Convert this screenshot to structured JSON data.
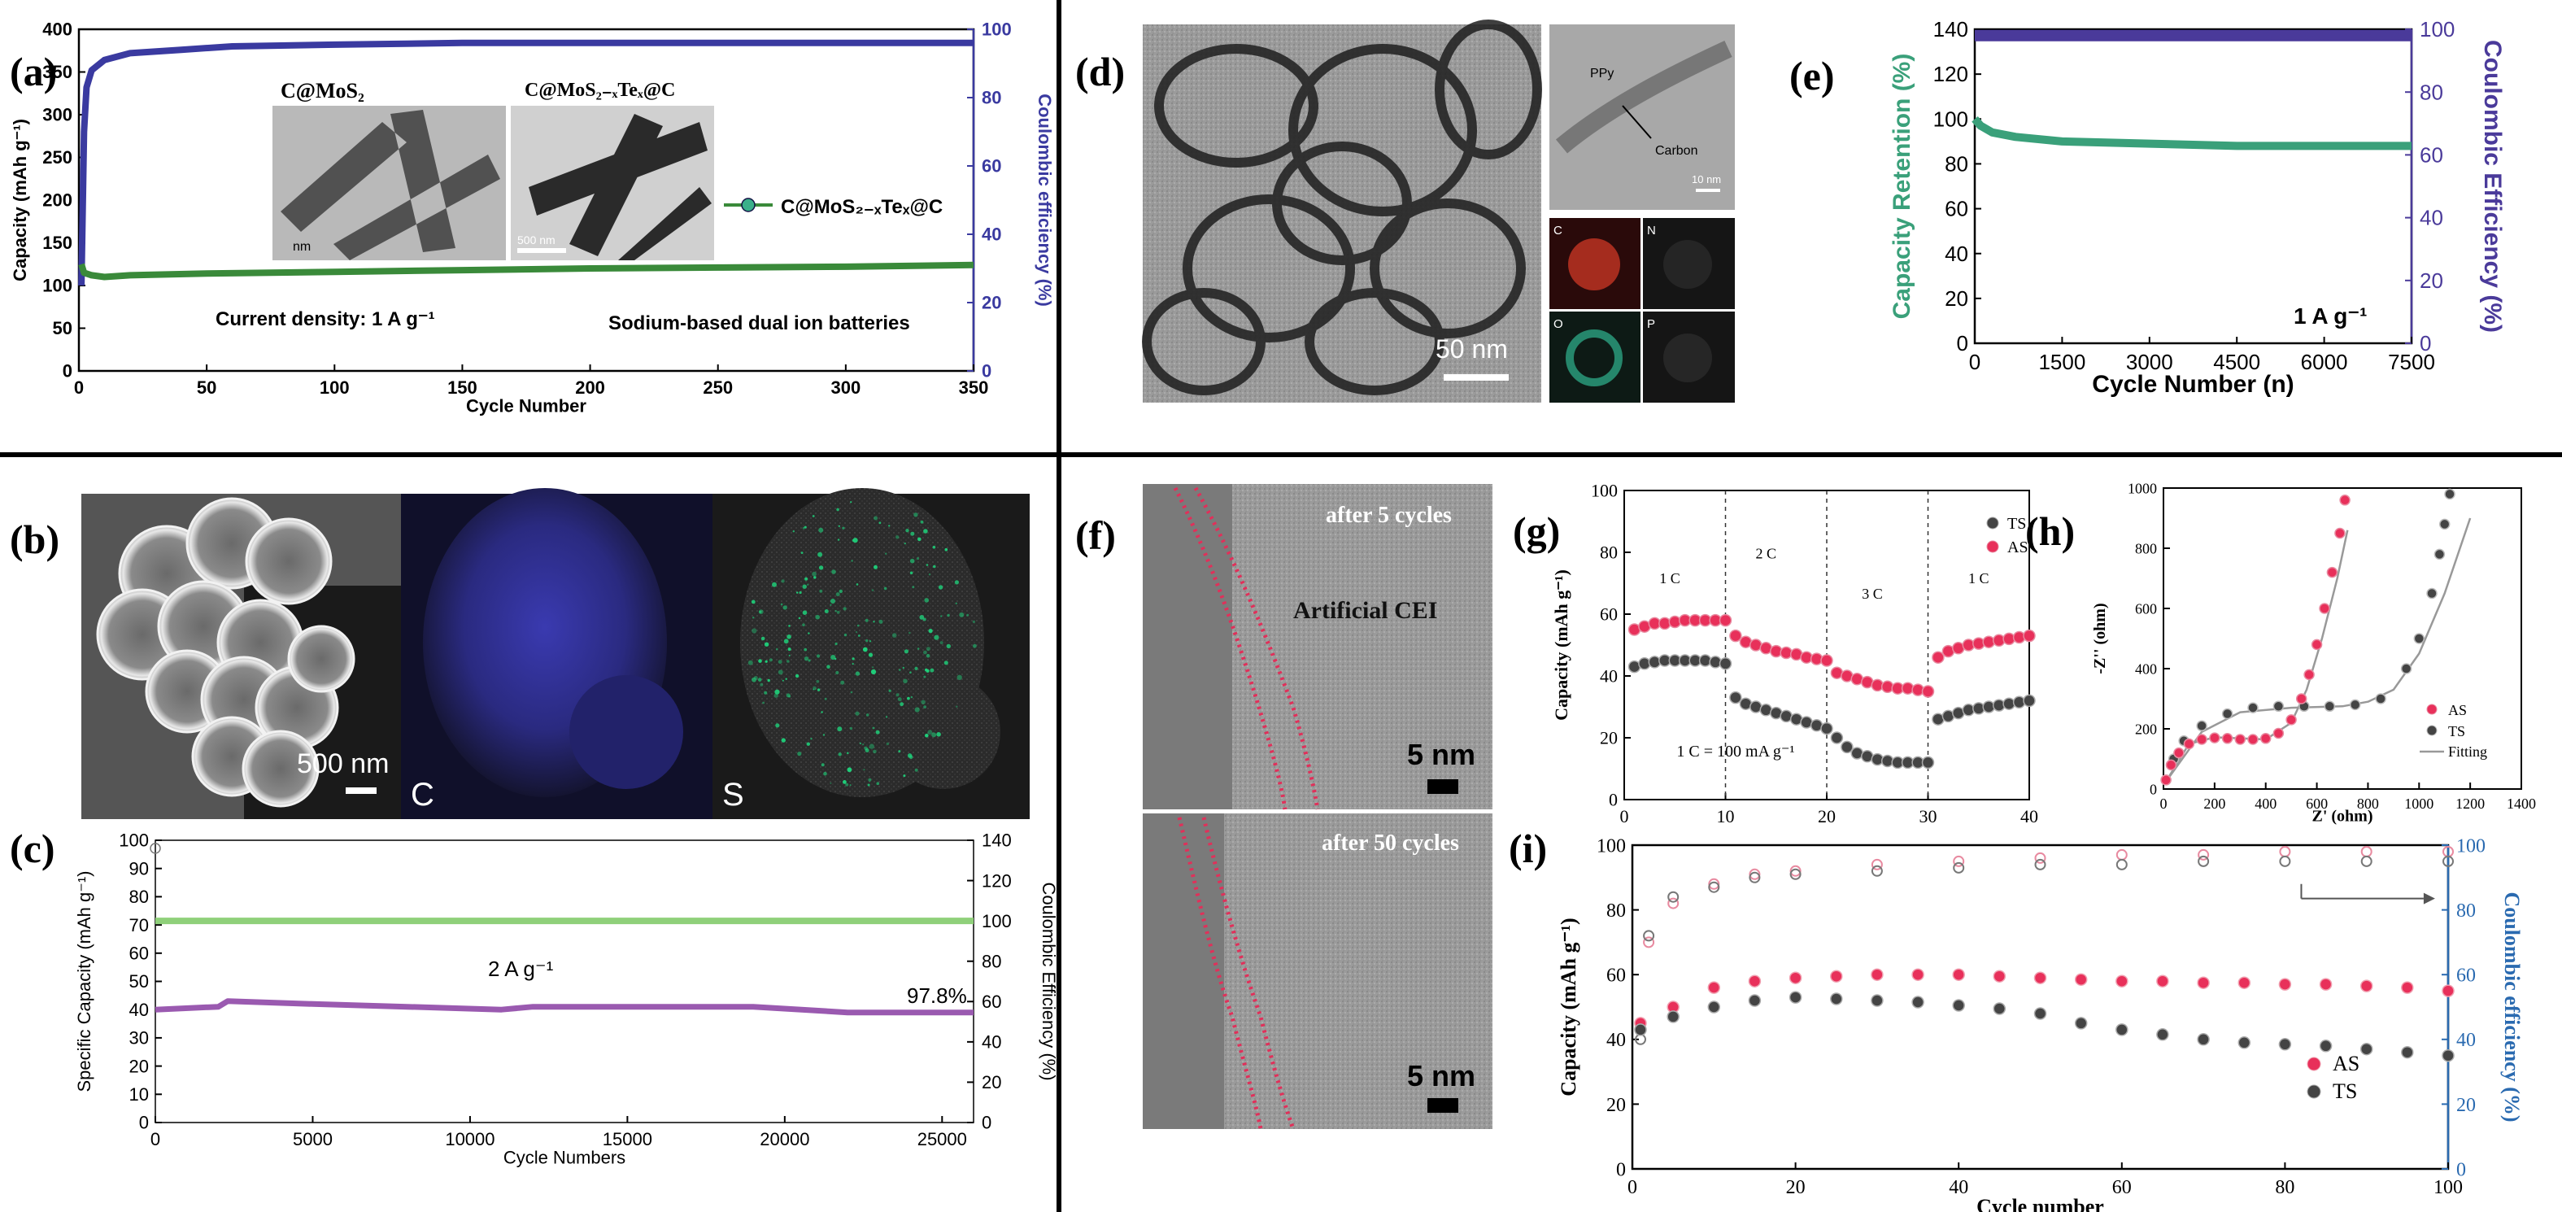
{
  "panels": {
    "a": {
      "letter": "(a)",
      "inset1_label": "C@MoS₂",
      "inset2_label": "C@MoS₂₋ₓTeₓ@C",
      "inset1_scale": "nm",
      "inset2_scale": "500 nm",
      "note1": "Current density: 1 A g⁻¹",
      "note2": "Sodium-based dual ion batteries"
    },
    "b": {
      "letter": "(b)",
      "scale": "500 nm",
      "map_c": "C",
      "map_s": "S"
    },
    "c": {
      "letter": "(c)",
      "rate": "2 A g⁻¹",
      "efficiency": "97.8%"
    },
    "d": {
      "letter": "(d)",
      "scale": "50 nm",
      "ppy_label": "PPy",
      "carbon_label": "Carbon",
      "small_scale": "10 nm",
      "map_labels": [
        "C",
        "N",
        "O",
        "P"
      ]
    },
    "e": {
      "letter": "(e)",
      "rate": "1 A g⁻¹"
    },
    "f": {
      "letter": "(f)",
      "top_label": "after 5 cycles",
      "cei_label": "Artificial CEI",
      "bottom_label": "after 50 cycles",
      "scale_top": "5 nm",
      "scale_bottom": "5 nm"
    },
    "g": {
      "letter": "(g)",
      "rate_labels": [
        "1 C",
        "2 C",
        "3 C",
        "1 C"
      ],
      "note": "1 C = 100 mA g⁻¹"
    },
    "h": {
      "letter": "(h)"
    },
    "i": {
      "letter": "(i)"
    }
  },
  "colors": {
    "blue": "#3a3aa0",
    "green": "#3a8a3a",
    "teal": "#3aa07a",
    "purple": "#4a3a9a",
    "red": "#e8305a",
    "black": "#333333",
    "light_green": "#8fd07a",
    "violet": "#9a5ab0",
    "mauve": "#d07a9a"
  },
  "chart_data": [
    {
      "id": "a",
      "type": "line",
      "xlabel": "Cycle Number",
      "ylabel": "Capacity (mAh g⁻¹)",
      "y2label": "Coulombic efficiency (%)",
      "xlim": [
        0,
        350
      ],
      "ylim": [
        0,
        400
      ],
      "y2lim": [
        0,
        100
      ],
      "xticks": [
        0,
        50,
        100,
        150,
        200,
        250,
        300,
        350
      ],
      "yticks": [
        0,
        50,
        100,
        150,
        200,
        250,
        300,
        350,
        400
      ],
      "y2ticks": [
        0,
        20,
        40,
        60,
        80,
        100
      ],
      "series": [
        {
          "name": "C@MoS₂₋ₓTeₓ@C",
          "axis": "y",
          "x": [
            1,
            2,
            5,
            10,
            20,
            50,
            100,
            150,
            200,
            250,
            300,
            350
          ],
          "values": [
            125,
            115,
            112,
            110,
            112,
            114,
            116,
            118,
            120,
            121,
            122,
            124
          ]
        },
        {
          "name": "",
          "axis": "y2",
          "x": [
            1,
            2,
            3,
            5,
            10,
            20,
            40,
            60,
            100,
            150,
            200,
            250,
            300,
            350
          ],
          "values": [
            25,
            70,
            83,
            88,
            91,
            93,
            94,
            95,
            95.5,
            96,
            96,
            96,
            96,
            96
          ]
        }
      ],
      "legend": [
        "C@MoS₂₋ₓTeₓ@C"
      ]
    },
    {
      "id": "c",
      "type": "line",
      "xlabel": "Cycle Numbers",
      "ylabel": "Specific Capacity (mAh g⁻¹)",
      "y2label": "Coulombic Efficiency (%)",
      "xlim": [
        0,
        26000
      ],
      "ylim": [
        0,
        100
      ],
      "y2lim": [
        0,
        140
      ],
      "xticks": [
        0,
        5000,
        10000,
        15000,
        20000,
        25000
      ],
      "yticks": [
        0,
        10,
        20,
        30,
        40,
        50,
        60,
        70,
        80,
        90,
        100
      ],
      "y2ticks": [
        0,
        20,
        40,
        60,
        80,
        100,
        120,
        140
      ],
      "series": [
        {
          "name": "",
          "axis": "y",
          "x": [
            0,
            2000,
            2300,
            5000,
            8000,
            11000,
            12000,
            15000,
            19000,
            22000,
            26000
          ],
          "values": [
            40,
            41,
            43,
            42,
            41,
            40,
            41,
            41,
            41,
            39,
            39
          ]
        },
        {
          "name": "",
          "axis": "y2",
          "x": [
            0,
            5000,
            10000,
            15000,
            20000,
            26000
          ],
          "values": [
            100,
            100,
            100,
            100,
            100,
            100
          ]
        }
      ]
    },
    {
      "id": "e",
      "type": "line",
      "xlabel": "Cycle Number (n)",
      "ylabel": "Capacity Retention (%)",
      "y2label": "Coulombic Efficiency (%)",
      "xlim": [
        0,
        7500
      ],
      "ylim": [
        0,
        140
      ],
      "y2lim": [
        0,
        100
      ],
      "xticks": [
        0,
        1500,
        3000,
        4500,
        6000,
        7500
      ],
      "yticks": [
        0,
        20,
        40,
        60,
        80,
        100,
        120,
        140
      ],
      "y2ticks": [
        0,
        20,
        40,
        60,
        80,
        100
      ],
      "series": [
        {
          "name": "",
          "axis": "y",
          "x": [
            0,
            100,
            300,
            700,
            1500,
            3000,
            4500,
            6000,
            7500
          ],
          "values": [
            100,
            97,
            94,
            92,
            90,
            89,
            88,
            88,
            88
          ]
        },
        {
          "name": "",
          "axis": "y2",
          "x": [
            0,
            1500,
            3000,
            4500,
            6000,
            7500
          ],
          "values": [
            98,
            98,
            98,
            98,
            98,
            98
          ]
        }
      ]
    },
    {
      "id": "g",
      "type": "scatter",
      "xlabel": "",
      "ylabel": "Capacity (mAh g⁻¹)",
      "xlim": [
        0,
        40
      ],
      "ylim": [
        0,
        100
      ],
      "xticks": [
        0,
        10,
        20,
        30,
        40
      ],
      "yticks": [
        0,
        20,
        40,
        60,
        80,
        100
      ],
      "series": [
        {
          "name": "TS",
          "x": [
            1,
            2,
            3,
            4,
            5,
            6,
            7,
            8,
            9,
            10,
            11,
            12,
            13,
            14,
            15,
            16,
            17,
            18,
            19,
            20,
            21,
            22,
            23,
            24,
            25,
            26,
            27,
            28,
            29,
            30,
            31,
            32,
            33,
            34,
            35,
            36,
            37,
            38,
            39,
            40
          ],
          "values": [
            43,
            44,
            44.5,
            45,
            45,
            45,
            45,
            45,
            44.5,
            44,
            33,
            31,
            30,
            29,
            28,
            27,
            26,
            25,
            24,
            23,
            20,
            17,
            15,
            14,
            13,
            12.5,
            12,
            12,
            12,
            12,
            26,
            27,
            28,
            29,
            29.5,
            30,
            30.5,
            31,
            31.5,
            32
          ]
        },
        {
          "name": "AS",
          "x": [
            1,
            2,
            3,
            4,
            5,
            6,
            7,
            8,
            9,
            10,
            11,
            12,
            13,
            14,
            15,
            16,
            17,
            18,
            19,
            20,
            21,
            22,
            23,
            24,
            25,
            26,
            27,
            28,
            29,
            30,
            31,
            32,
            33,
            34,
            35,
            36,
            37,
            38,
            39,
            40
          ],
          "values": [
            55,
            56,
            57,
            57,
            57.5,
            58,
            58,
            58,
            58,
            58,
            53,
            51,
            50,
            49,
            48,
            47.5,
            47,
            46,
            45.5,
            45,
            41,
            40,
            39,
            38,
            37,
            36.5,
            36,
            36,
            35.5,
            35,
            46,
            48,
            49,
            50,
            50.5,
            51,
            51.5,
            52,
            52.5,
            53
          ]
        }
      ],
      "legend": [
        "TS",
        "AS"
      ]
    },
    {
      "id": "h",
      "type": "scatter",
      "xlabel": "Z' (ohm)",
      "ylabel": "-Z'' (ohm)",
      "xlim": [
        0,
        1400
      ],
      "ylim": [
        0,
        1000
      ],
      "xticks": [
        0,
        200,
        400,
        600,
        800,
        1000,
        1200,
        1400
      ],
      "yticks": [
        0,
        200,
        400,
        600,
        800,
        1000
      ],
      "series": [
        {
          "name": "AS",
          "x": [
            10,
            30,
            60,
            100,
            150,
            200,
            250,
            300,
            350,
            400,
            450,
            500,
            540,
            570,
            600,
            630,
            660,
            690,
            710
          ],
          "values": [
            30,
            80,
            120,
            150,
            165,
            170,
            168,
            165,
            165,
            168,
            185,
            230,
            300,
            380,
            480,
            600,
            720,
            850,
            960
          ]
        },
        {
          "name": "TS",
          "x": [
            10,
            40,
            80,
            150,
            250,
            350,
            450,
            550,
            650,
            750,
            850,
            950,
            1000,
            1050,
            1080,
            1100,
            1120
          ],
          "values": [
            30,
            100,
            160,
            210,
            250,
            270,
            275,
            275,
            275,
            280,
            300,
            400,
            500,
            650,
            780,
            880,
            980
          ]
        },
        {
          "name": "Fitting",
          "x": [
            10,
            100,
            200,
            400,
            500,
            560,
            620,
            680,
            720,
            800,
            900,
            1000,
            1100,
            1200
          ],
          "values": [
            25,
            150,
            172,
            165,
            220,
            330,
            500,
            700,
            860,
            290,
            330,
            450,
            650,
            900
          ]
        }
      ],
      "legend": [
        "AS",
        "TS",
        "Fitting"
      ]
    },
    {
      "id": "i",
      "type": "scatter",
      "xlabel": "Cycle number",
      "ylabel": "Capacity (mAh g⁻¹)",
      "y2label": "Coulombic efficiency (%)",
      "xlim": [
        0,
        100
      ],
      "ylim": [
        0,
        100
      ],
      "y2lim": [
        0,
        100
      ],
      "xticks": [
        0,
        20,
        40,
        60,
        80,
        100
      ],
      "yticks": [
        0,
        20,
        40,
        60,
        80,
        100
      ],
      "y2ticks": [
        0,
        20,
        40,
        60,
        80,
        100
      ],
      "series": [
        {
          "name": "AS",
          "axis": "y",
          "x": [
            1,
            5,
            10,
            15,
            20,
            25,
            30,
            35,
            40,
            45,
            50,
            55,
            60,
            65,
            70,
            75,
            80,
            85,
            90,
            95,
            100
          ],
          "values": [
            45,
            50,
            56,
            58,
            59,
            59.5,
            60,
            60,
            60,
            59.5,
            59,
            58.5,
            58,
            58,
            57.5,
            57.5,
            57,
            57,
            56.5,
            56,
            55
          ]
        },
        {
          "name": "TS",
          "axis": "y",
          "x": [
            1,
            5,
            10,
            15,
            20,
            25,
            30,
            35,
            40,
            45,
            50,
            55,
            60,
            65,
            70,
            75,
            80,
            85,
            90,
            95,
            100
          ],
          "values": [
            43,
            47,
            50,
            52,
            53,
            52.5,
            52,
            51.5,
            50.5,
            49.5,
            48,
            45,
            43,
            41.5,
            40,
            39,
            38.5,
            38,
            37,
            36,
            35
          ]
        },
        {
          "name": "",
          "axis": "y2",
          "x": [
            1,
            2,
            5,
            10,
            15,
            20,
            30,
            40,
            50,
            60,
            70,
            80,
            90,
            100
          ],
          "values": [
            40,
            72,
            84,
            87,
            90,
            91,
            92,
            93,
            94,
            94,
            95,
            95,
            95,
            95
          ]
        },
        {
          "name": "",
          "axis": "y2",
          "x": [
            1,
            2,
            5,
            10,
            15,
            20,
            30,
            40,
            50,
            60,
            70,
            80,
            90,
            100
          ],
          "values": [
            45,
            70,
            82,
            88,
            91,
            92,
            94,
            95,
            96,
            97,
            97,
            98,
            98,
            98
          ]
        }
      ],
      "legend": [
        "AS",
        "TS"
      ]
    }
  ]
}
